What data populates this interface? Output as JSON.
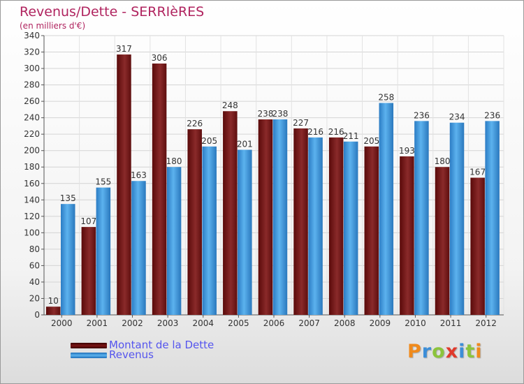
{
  "header": {
    "title": "Revenus/Dette - SERRIèRES",
    "subtitle": "(en milliers d'€)"
  },
  "legend": {
    "items": [
      {
        "label": "Montant de la Dette",
        "color": "#6b0d0d"
      },
      {
        "label": "Revenus",
        "color": "#3c9be0"
      }
    ]
  },
  "logo": {
    "letters": [
      "P",
      "r",
      "o",
      "x",
      "i",
      "t",
      "i"
    ],
    "colors": [
      "#f08a1c",
      "#3c8ed8",
      "#8cc43c",
      "#e03a2c",
      "#3c8ed8",
      "#8cc43c",
      "#f08a1c"
    ]
  },
  "chart_data": {
    "type": "bar",
    "title": "Revenus/Dette - SERRIèRES",
    "subtitle": "(en milliers d'€)",
    "xlabel": "",
    "ylabel": "",
    "categories": [
      "2000",
      "2001",
      "2002",
      "2003",
      "2004",
      "2005",
      "2006",
      "2007",
      "2008",
      "2009",
      "2010",
      "2011",
      "2012"
    ],
    "series": [
      {
        "name": "Montant de la Dette",
        "color": "#7a1a1a",
        "values": [
          10,
          107,
          317,
          306,
          226,
          248,
          238,
          227,
          216,
          205,
          193,
          180,
          167
        ]
      },
      {
        "name": "Revenus",
        "color": "#3c9be0",
        "values": [
          135,
          155,
          163,
          180,
          205,
          201,
          238,
          216,
          211,
          258,
          236,
          234,
          236
        ]
      }
    ],
    "ylim": [
      0,
      340
    ],
    "ytick_step": 20,
    "grid": true,
    "legend_position": "bottom-left",
    "data_labels": true
  }
}
